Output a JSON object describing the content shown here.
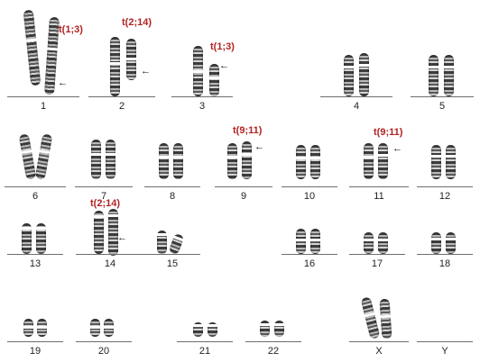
{
  "karyotype": {
    "chromosomes": [
      {
        "id": "1",
        "label": "1"
      },
      {
        "id": "2",
        "label": "2"
      },
      {
        "id": "3",
        "label": "3"
      },
      {
        "id": "4",
        "label": "4"
      },
      {
        "id": "5",
        "label": "5"
      },
      {
        "id": "6",
        "label": "6"
      },
      {
        "id": "7",
        "label": "7"
      },
      {
        "id": "8",
        "label": "8"
      },
      {
        "id": "9",
        "label": "9"
      },
      {
        "id": "10",
        "label": "10"
      },
      {
        "id": "11",
        "label": "11"
      },
      {
        "id": "12",
        "label": "12"
      },
      {
        "id": "13",
        "label": "13"
      },
      {
        "id": "14",
        "label": "14"
      },
      {
        "id": "15",
        "label": "15"
      },
      {
        "id": "16",
        "label": "16"
      },
      {
        "id": "17",
        "label": "17"
      },
      {
        "id": "18",
        "label": "18"
      },
      {
        "id": "19",
        "label": "19"
      },
      {
        "id": "20",
        "label": "20"
      },
      {
        "id": "21",
        "label": "21"
      },
      {
        "id": "22",
        "label": "22"
      },
      {
        "id": "X",
        "label": "X"
      },
      {
        "id": "Y",
        "label": "Y"
      }
    ],
    "annotations": [
      {
        "target": "1",
        "text": "t(1;3)",
        "arrow": "←"
      },
      {
        "target": "2",
        "text": "t(2;14)",
        "arrow": "←"
      },
      {
        "target": "3",
        "text": "t(1;3)",
        "arrow": "←"
      },
      {
        "target": "9",
        "text": "t(9;11)",
        "arrow": "←"
      },
      {
        "target": "11",
        "text": "t(9;11)",
        "arrow": "←"
      },
      {
        "target": "14",
        "text": "t(2;14)",
        "arrow": "←"
      }
    ],
    "colors": {
      "annotation": "#b22222",
      "chromosome_dark": "#3c3c3c",
      "baseline": "#6e6e6e"
    }
  }
}
